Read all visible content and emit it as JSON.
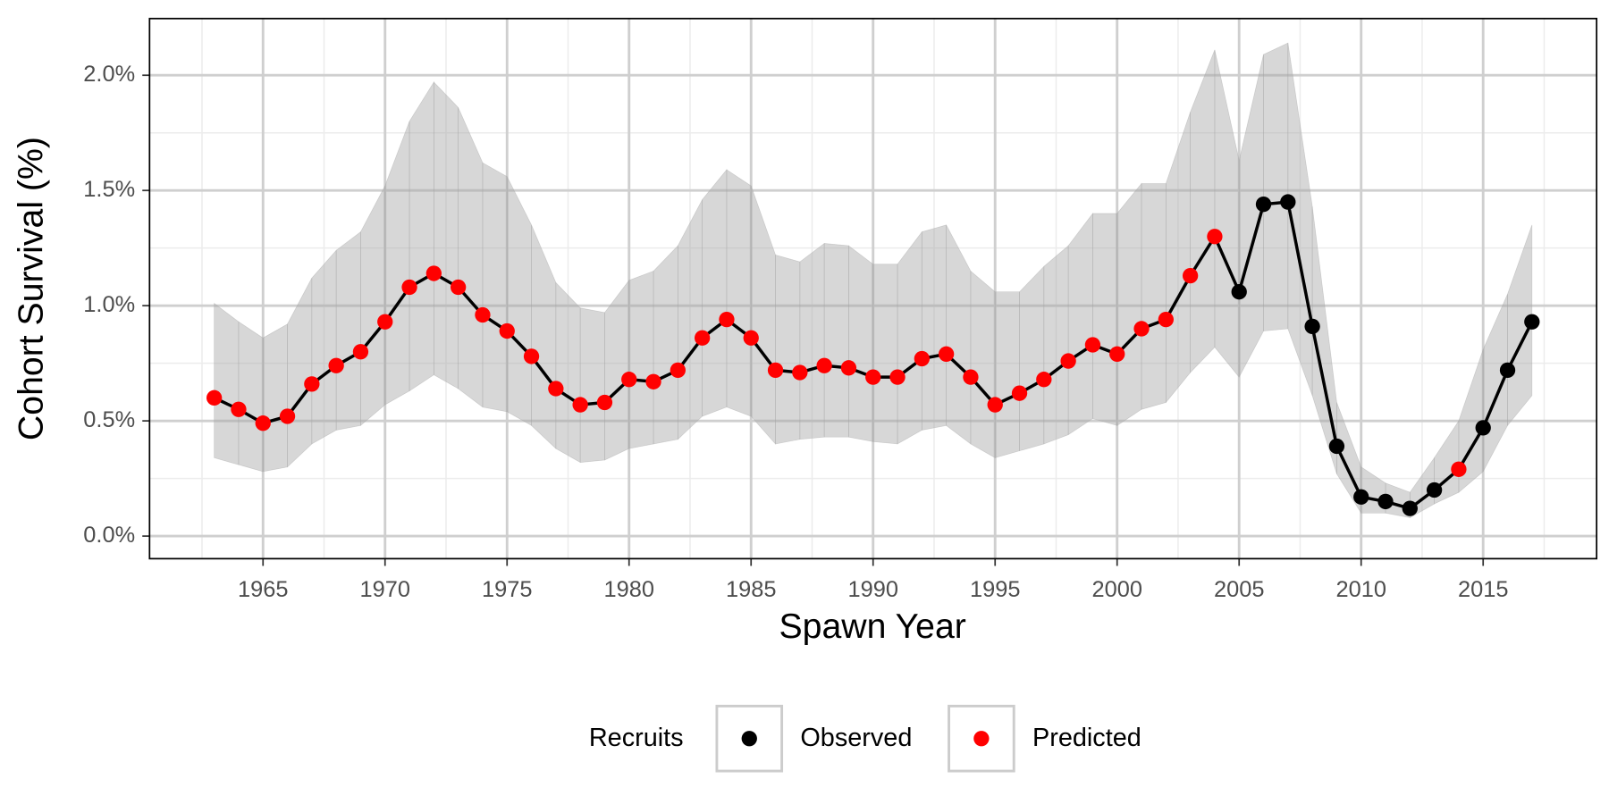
{
  "chart_data": {
    "type": "line",
    "x_label": "Spawn Year",
    "y_label": "Cohort Survival (%)",
    "x": [
      1963,
      1964,
      1965,
      1966,
      1967,
      1968,
      1969,
      1970,
      1971,
      1972,
      1973,
      1974,
      1975,
      1976,
      1977,
      1978,
      1979,
      1980,
      1981,
      1982,
      1983,
      1984,
      1985,
      1986,
      1987,
      1988,
      1989,
      1990,
      1991,
      1992,
      1993,
      1994,
      1995,
      1996,
      1997,
      1998,
      1999,
      2000,
      2001,
      2002,
      2003,
      2004,
      2005,
      2006,
      2007,
      2008,
      2009,
      2010,
      2011,
      2012,
      2013,
      2014,
      2015,
      2016,
      2017
    ],
    "series": [
      {
        "name": "Observed",
        "color": "#000000",
        "values": [
          null,
          null,
          null,
          null,
          null,
          null,
          null,
          null,
          null,
          null,
          null,
          null,
          null,
          null,
          null,
          null,
          null,
          null,
          null,
          null,
          null,
          null,
          null,
          null,
          null,
          null,
          null,
          null,
          null,
          null,
          null,
          null,
          null,
          null,
          null,
          null,
          null,
          null,
          null,
          null,
          null,
          null,
          1.06,
          1.44,
          1.45,
          0.91,
          0.39,
          0.17,
          0.15,
          0.12,
          0.2,
          null,
          0.47,
          0.72,
          0.93
        ]
      },
      {
        "name": "Predicted",
        "color": "#ff0000",
        "values": [
          0.6,
          0.55,
          0.49,
          0.52,
          0.66,
          0.74,
          0.8,
          0.93,
          1.08,
          1.14,
          1.08,
          0.96,
          0.89,
          0.78,
          0.64,
          0.57,
          0.58,
          0.68,
          0.67,
          0.72,
          0.86,
          0.94,
          0.86,
          0.72,
          0.71,
          0.74,
          0.73,
          0.69,
          0.69,
          0.77,
          0.79,
          0.69,
          0.57,
          0.62,
          0.68,
          0.76,
          0.83,
          0.79,
          0.9,
          0.94,
          1.13,
          1.3,
          null,
          null,
          null,
          null,
          null,
          null,
          null,
          null,
          null,
          0.29,
          null,
          null,
          null
        ]
      }
    ],
    "line_color": "#000000",
    "band": {
      "color": "#a6a6a6",
      "upper": [
        1.01,
        0.93,
        0.86,
        0.92,
        1.12,
        1.24,
        1.32,
        1.52,
        1.8,
        1.97,
        1.86,
        1.62,
        1.56,
        1.35,
        1.1,
        0.99,
        0.97,
        1.11,
        1.15,
        1.26,
        1.46,
        1.59,
        1.52,
        1.22,
        1.19,
        1.27,
        1.26,
        1.18,
        1.18,
        1.32,
        1.35,
        1.15,
        1.06,
        1.06,
        1.17,
        1.26,
        1.4,
        1.4,
        1.53,
        1.53,
        1.84,
        2.11,
        1.63,
        2.09,
        2.14,
        1.43,
        0.58,
        0.3,
        0.23,
        0.19,
        0.34,
        0.5,
        0.81,
        1.05,
        1.35
      ],
      "lower": [
        0.34,
        0.31,
        0.28,
        0.3,
        0.4,
        0.46,
        0.48,
        0.57,
        0.63,
        0.7,
        0.64,
        0.56,
        0.54,
        0.48,
        0.38,
        0.32,
        0.33,
        0.38,
        0.4,
        0.42,
        0.52,
        0.56,
        0.52,
        0.4,
        0.42,
        0.43,
        0.43,
        0.41,
        0.4,
        0.46,
        0.48,
        0.4,
        0.34,
        0.37,
        0.4,
        0.44,
        0.51,
        0.48,
        0.55,
        0.58,
        0.71,
        0.82,
        0.69,
        0.89,
        0.9,
        0.61,
        0.27,
        0.1,
        0.1,
        0.08,
        0.14,
        0.19,
        0.28,
        0.48,
        0.61
      ]
    },
    "xlim": [
      1960.35,
      2019.65
    ],
    "ylim": [
      -0.098,
      2.246
    ],
    "xticks": [
      1965,
      1970,
      1975,
      1980,
      1985,
      1990,
      1995,
      2000,
      2005,
      2010,
      2015
    ],
    "yticks": [
      {
        "value": 0,
        "label": "0.0%"
      },
      {
        "value": 0.5,
        "label": "0.5%"
      },
      {
        "value": 1,
        "label": "1.0%"
      },
      {
        "value": 1.5,
        "label": "1.5%"
      },
      {
        "value": 2,
        "label": "2.0%"
      }
    ],
    "grid": true,
    "legend_title": "Recruits",
    "legend_position": "bottom"
  }
}
